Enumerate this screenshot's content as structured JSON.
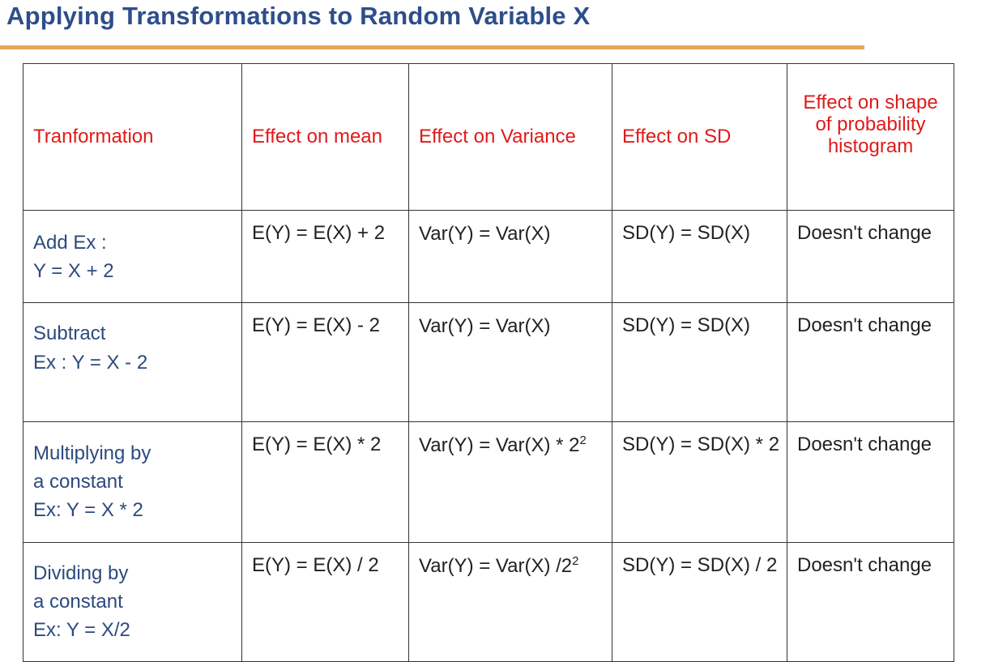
{
  "slide": {
    "title": "Applying Transformations to Random Variable X"
  },
  "table": {
    "headers": {
      "transformation": "Tranformation",
      "mean": "Effect on mean",
      "variance": "Effect on Variance",
      "sd": "Effect on SD",
      "shape": "Effect on shape of probability histogram"
    },
    "rows": [
      {
        "label": "Add Ex :",
        "example": "Y = X + 2",
        "mean": "E(Y) = E(X) + 2",
        "variance": "Var(Y) = Var(X)",
        "variance_exp": "",
        "sd": "SD(Y) = SD(X)",
        "shape": "Doesn't change"
      },
      {
        "label": "Subtract",
        "example": "Ex : Y = X - 2",
        "mean": "E(Y) = E(X) - 2",
        "variance": "Var(Y) = Var(X)",
        "variance_exp": "",
        "sd": "SD(Y) = SD(X)",
        "shape": "Doesn't change"
      },
      {
        "label": "Multiplying by",
        "label2": "a  constant",
        "example": "Ex: Y = X * 2",
        "mean": "E(Y) = E(X) * 2",
        "variance": "Var(Y) = Var(X) * 2",
        "variance_exp": "2",
        "sd": "SD(Y) = SD(X) * 2",
        "shape": "Doesn't change"
      },
      {
        "label": "Dividing by",
        "label2": "a  constant",
        "example": "Ex: Y = X/2",
        "mean": "E(Y) = E(X) / 2",
        "variance": "Var(Y) = Var(X) /2",
        "variance_exp": "2",
        "sd": "SD(Y) = SD(X) / 2",
        "shape": "Doesn't change"
      }
    ]
  }
}
